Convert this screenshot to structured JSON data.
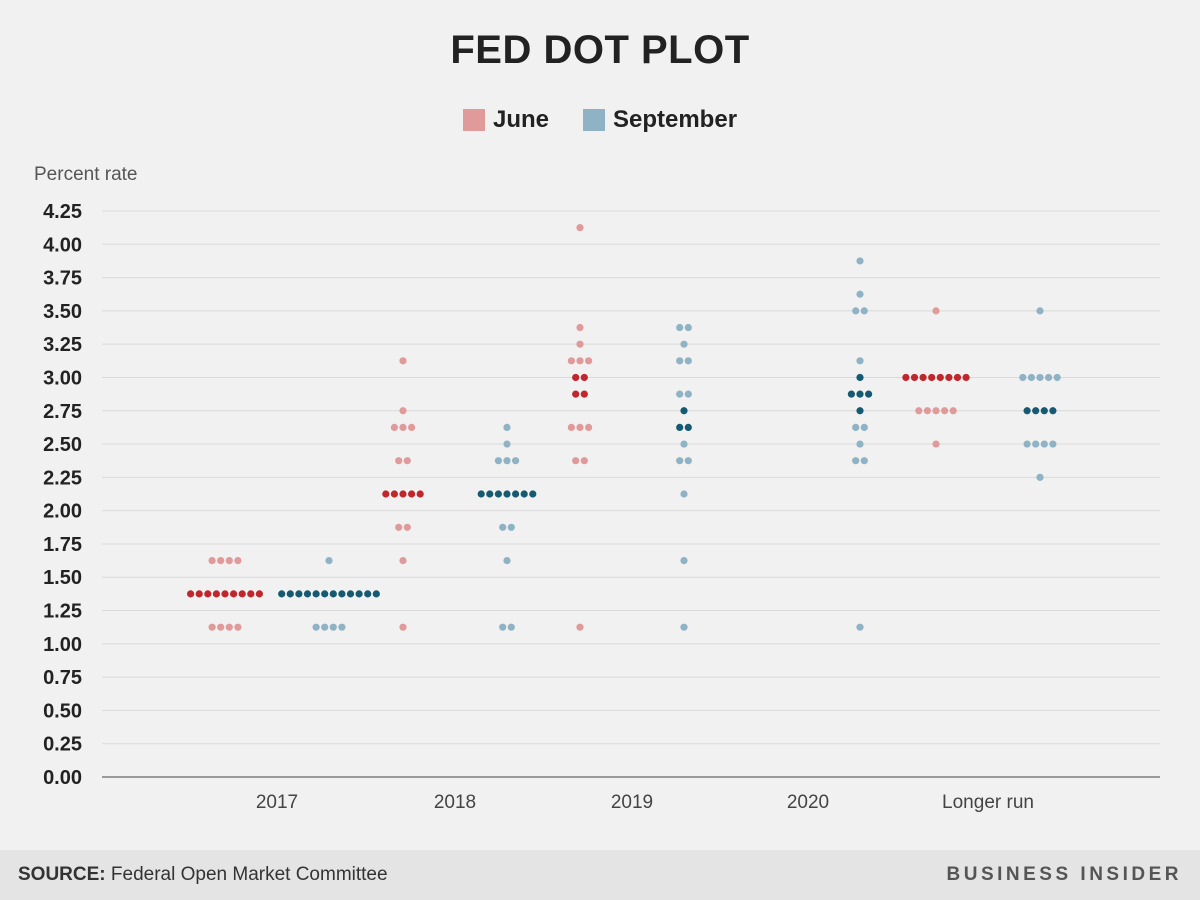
{
  "title": "FED DOT PLOT",
  "legend": [
    {
      "label": "June",
      "color": "#e09a9a"
    },
    {
      "label": "September",
      "color": "#8fb3c4"
    }
  ],
  "footer": {
    "source_label": "SOURCE:",
    "source_text": "Federal Open Market Committee",
    "brand": "BUSINESS INSIDER"
  },
  "chart_data": {
    "type": "scatter",
    "title": "FED DOT PLOT",
    "ylabel": "Percent rate",
    "xlabel": "",
    "ylim": [
      0,
      4.25
    ],
    "y_ticks": [
      "0.00",
      "0.25",
      "0.50",
      "0.75",
      "1.00",
      "1.25",
      "1.50",
      "1.75",
      "2.00",
      "2.25",
      "2.50",
      "2.75",
      "3.00",
      "3.25",
      "3.50",
      "3.75",
      "4.00",
      "4.25"
    ],
    "categories": [
      "2017",
      "2018",
      "2019",
      "2020",
      "Longer run"
    ],
    "grid": true,
    "legend_position": "top-center",
    "colors": {
      "june_light": "#e09a9a",
      "june_median": "#c0272d",
      "september_light": "#8fb3c4",
      "september_median": "#165a72"
    },
    "series": [
      {
        "name": "June",
        "groups": [
          {
            "category": "2017",
            "median": 1.375,
            "dots": [
              {
                "y": 1.625,
                "n": 4
              },
              {
                "y": 1.375,
                "n": 9
              },
              {
                "y": 1.125,
                "n": 4
              }
            ]
          },
          {
            "category": "2018",
            "median": 2.125,
            "dots": [
              {
                "y": 3.125,
                "n": 1
              },
              {
                "y": 2.75,
                "n": 1
              },
              {
                "y": 2.625,
                "n": 3
              },
              {
                "y": 2.375,
                "n": 2
              },
              {
                "y": 2.125,
                "n": 5
              },
              {
                "y": 1.875,
                "n": 2
              },
              {
                "y": 1.625,
                "n": 1
              },
              {
                "y": 1.125,
                "n": 1
              }
            ]
          },
          {
            "category": "2019",
            "median": 2.9375,
            "dots": [
              {
                "y": 4.125,
                "n": 1
              },
              {
                "y": 3.375,
                "n": 1
              },
              {
                "y": 3.25,
                "n": 1
              },
              {
                "y": 3.125,
                "n": 3
              },
              {
                "y": 3.0,
                "n": 2
              },
              {
                "y": 2.875,
                "n": 2
              },
              {
                "y": 2.625,
                "n": 3
              },
              {
                "y": 2.375,
                "n": 2
              },
              {
                "y": 1.125,
                "n": 1
              }
            ]
          },
          {
            "category": "Longer run",
            "median": 3.0,
            "dots": [
              {
                "y": 3.5,
                "n": 1
              },
              {
                "y": 3.0,
                "n": 8
              },
              {
                "y": 2.75,
                "n": 5
              },
              {
                "y": 2.5,
                "n": 1
              }
            ]
          }
        ]
      },
      {
        "name": "September",
        "groups": [
          {
            "category": "2017",
            "median": 1.375,
            "dots": [
              {
                "y": 1.625,
                "n": 1
              },
              {
                "y": 1.375,
                "n": 12
              },
              {
                "y": 1.125,
                "n": 4
              }
            ]
          },
          {
            "category": "2018",
            "median": 2.125,
            "dots": [
              {
                "y": 2.625,
                "n": 1
              },
              {
                "y": 2.5,
                "n": 1
              },
              {
                "y": 2.375,
                "n": 3
              },
              {
                "y": 2.125,
                "n": 7
              },
              {
                "y": 1.875,
                "n": 2
              },
              {
                "y": 1.625,
                "n": 1
              },
              {
                "y": 1.125,
                "n": 2
              }
            ]
          },
          {
            "category": "2019",
            "median": 2.6875,
            "dots": [
              {
                "y": 3.375,
                "n": 2
              },
              {
                "y": 3.25,
                "n": 1
              },
              {
                "y": 3.125,
                "n": 2
              },
              {
                "y": 2.875,
                "n": 2
              },
              {
                "y": 2.75,
                "n": 1
              },
              {
                "y": 2.625,
                "n": 2
              },
              {
                "y": 2.5,
                "n": 1
              },
              {
                "y": 2.375,
                "n": 2
              },
              {
                "y": 2.125,
                "n": 1
              },
              {
                "y": 1.625,
                "n": 1
              },
              {
                "y": 1.125,
                "n": 1
              }
            ]
          },
          {
            "category": "2020",
            "median": 2.875,
            "dots": [
              {
                "y": 3.875,
                "n": 1
              },
              {
                "y": 3.625,
                "n": 1
              },
              {
                "y": 3.5,
                "n": 2
              },
              {
                "y": 3.125,
                "n": 1
              },
              {
                "y": 3.0,
                "n": 1
              },
              {
                "y": 2.875,
                "n": 3
              },
              {
                "y": 2.75,
                "n": 1
              },
              {
                "y": 2.625,
                "n": 2
              },
              {
                "y": 2.5,
                "n": 1
              },
              {
                "y": 2.375,
                "n": 2
              },
              {
                "y": 1.125,
                "n": 1
              }
            ]
          },
          {
            "category": "Longer run",
            "median": 2.75,
            "dots": [
              {
                "y": 3.5,
                "n": 1
              },
              {
                "y": 3.0,
                "n": 5
              },
              {
                "y": 2.75,
                "n": 4
              },
              {
                "y": 2.5,
                "n": 4
              },
              {
                "y": 2.25,
                "n": 1
              }
            ]
          }
        ]
      }
    ]
  }
}
